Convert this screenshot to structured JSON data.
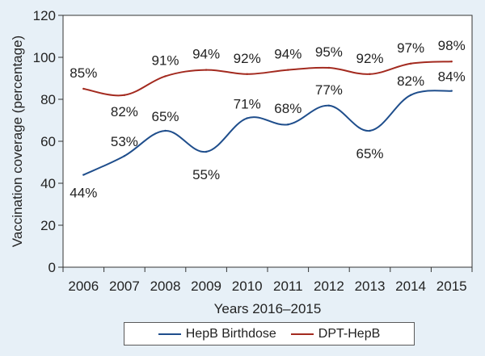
{
  "chart_data": {
    "type": "line",
    "categories": [
      "2006",
      "2007",
      "2008",
      "2009",
      "2010",
      "2011",
      "2012",
      "2013",
      "2014",
      "2015"
    ],
    "series": [
      {
        "name": "HepB Birthdose",
        "color": "#1f4e8c",
        "values": [
          44,
          53,
          65,
          55,
          71,
          68,
          77,
          65,
          82,
          84
        ],
        "labels": [
          "44%",
          "53%",
          "65%",
          "55%",
          "71%",
          "68%",
          "77%",
          "65%",
          "82%",
          "84%"
        ]
      },
      {
        "name": "DPT-HepB",
        "color": "#a32a1f",
        "values": [
          85,
          82,
          91,
          94,
          92,
          94,
          95,
          92,
          97,
          98
        ],
        "labels": [
          "85%",
          "82%",
          "91%",
          "94%",
          "92%",
          "94%",
          "95%",
          "92%",
          "97%",
          "98%"
        ]
      }
    ],
    "xlabel": "Years 2016–2015",
    "ylabel": "Vaccination coverage (percentage)",
    "ylim": [
      0,
      120
    ],
    "yticks": [
      "0",
      "20",
      "40",
      "60",
      "80",
      "100",
      "120"
    ],
    "grid": false,
    "legend_position": "bottom-center"
  }
}
